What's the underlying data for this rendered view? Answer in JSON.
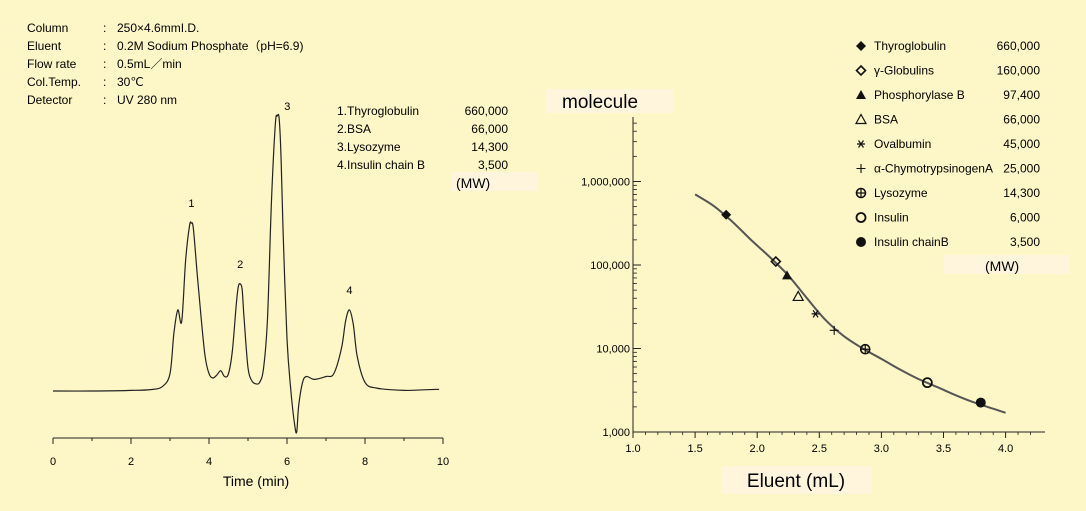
{
  "conditions": [
    {
      "label": "Column",
      "value": "250×4.6mmI.D."
    },
    {
      "label": "Eluent",
      "value": "0.2M Sodium Phosphate（pH=6.9)"
    },
    {
      "label": "Flow rate",
      "value": "0.5mL／min"
    },
    {
      "label": "Col.Temp.",
      "value": "30℃"
    },
    {
      "label": "Detector",
      "value": "UV 280 nm"
    }
  ],
  "chart_data": [
    {
      "type": "line",
      "title": "",
      "xlabel": "Time (min)",
      "ylabel": "",
      "xlim": [
        0,
        10
      ],
      "xticks": [
        0,
        2,
        4,
        6,
        8,
        10
      ],
      "grid": false,
      "peak_labels": [
        {
          "label": "1",
          "x": 3.55
        },
        {
          "label": "2",
          "x": 4.8
        },
        {
          "label": "3",
          "x": 5.75
        },
        {
          "label": "4",
          "x": 7.6
        }
      ],
      "legend": {
        "items": [
          {
            "name": "1.Thyroglobulin",
            "value": "660,000"
          },
          {
            "name": "2.BSA",
            "value": "66,000"
          },
          {
            "name": "3.Lysozyme",
            "value": "14,300"
          },
          {
            "name": "4.Insulin chain B",
            "value": "3,500"
          }
        ],
        "unit": "(MW)"
      },
      "series": [
        {
          "x": [
            0,
            1,
            2,
            2.5,
            2.8,
            3.0,
            3.1,
            3.2,
            3.3,
            3.4,
            3.5,
            3.55,
            3.6,
            3.7,
            3.8,
            3.9,
            4.0,
            4.1,
            4.2,
            4.3,
            4.4,
            4.5,
            4.6,
            4.7,
            4.75,
            4.8,
            4.85,
            4.9,
            5.0,
            5.1,
            5.2,
            5.3,
            5.4,
            5.5,
            5.6,
            5.7,
            5.75,
            5.8,
            5.85,
            5.9,
            6.0,
            6.1,
            6.2,
            6.25,
            6.3,
            6.4,
            6.5,
            6.7,
            7.0,
            7.2,
            7.4,
            7.5,
            7.6,
            7.7,
            7.8,
            8.0,
            8.3,
            9.0,
            9.5,
            9.9
          ],
          "y": [
            0,
            0,
            0.2,
            0.5,
            1.5,
            6,
            20,
            28,
            24,
            45,
            57,
            58,
            56,
            40,
            25,
            12,
            6,
            4.5,
            5.5,
            7,
            5,
            6,
            14,
            30,
            36,
            37,
            35,
            25,
            8,
            3.5,
            2.5,
            3,
            8,
            25,
            65,
            92,
            95,
            94,
            80,
            55,
            18,
            0,
            -12,
            -14,
            -5,
            3,
            5,
            4,
            5,
            6,
            15,
            24,
            28,
            23,
            12,
            3,
            1,
            0.2,
            0.4,
            0.6
          ]
        }
      ]
    },
    {
      "type": "scatter",
      "title": "",
      "xlabel": "Eluent (mL)",
      "ylabel": "molecule",
      "xlim": [
        1.0,
        4.3
      ],
      "ylim": [
        1000,
        6000000
      ],
      "yscale": "log",
      "xticks": [
        "1.0",
        "1.5",
        "2.0",
        "2.5",
        "3.0",
        "3.5",
        "4.0"
      ],
      "yticks": [
        "1,000",
        "10,000",
        "100,000",
        "1,000,000"
      ],
      "grid": false,
      "legend_position": "top-right",
      "legend_unit": "(MW)",
      "points": [
        {
          "name": "Thyroglobulin",
          "mw": "660,000",
          "x": 1.75,
          "y": 400000,
          "marker": "diamond-filled"
        },
        {
          "name": "γ-Globulins",
          "mw": "160,000",
          "x": 2.15,
          "y": 110000,
          "marker": "diamond-open"
        },
        {
          "name": "Phosphorylase B",
          "mw": "97,400",
          "x": 2.24,
          "y": 75000,
          "marker": "triangle-filled"
        },
        {
          "name": "BSA",
          "mw": "66,000",
          "x": 2.33,
          "y": 42000,
          "marker": "triangle-open"
        },
        {
          "name": "Ovalbumin",
          "mw": "45,000",
          "x": 2.47,
          "y": 26000,
          "marker": "asterisk"
        },
        {
          "name": "α-ChymotrypsinogenA",
          "mw": "25,000",
          "x": 2.62,
          "y": 16500,
          "marker": "plus"
        },
        {
          "name": "Lysozyme",
          "mw": "14,300",
          "x": 2.87,
          "y": 9800,
          "marker": "circle-cross"
        },
        {
          "name": "Insulin",
          "mw": "6,000",
          "x": 3.37,
          "y": 3900,
          "marker": "circle-open"
        },
        {
          "name": "Insulin chainB",
          "mw": "3,500",
          "x": 3.8,
          "y": 2250,
          "marker": "circle-filled"
        }
      ],
      "fit_curve": {
        "x": [
          1.5,
          1.65,
          1.8,
          1.95,
          2.1,
          2.25,
          2.4,
          2.55,
          2.7,
          2.85,
          3.0,
          3.15,
          3.3,
          3.45,
          3.6,
          3.75,
          3.9,
          4.0
        ],
        "y": [
          700000,
          510000,
          330000,
          200000,
          125000,
          75000,
          40000,
          22000,
          14000,
          10000,
          7500,
          5600,
          4300,
          3450,
          2750,
          2250,
          1900,
          1700
        ]
      }
    }
  ]
}
